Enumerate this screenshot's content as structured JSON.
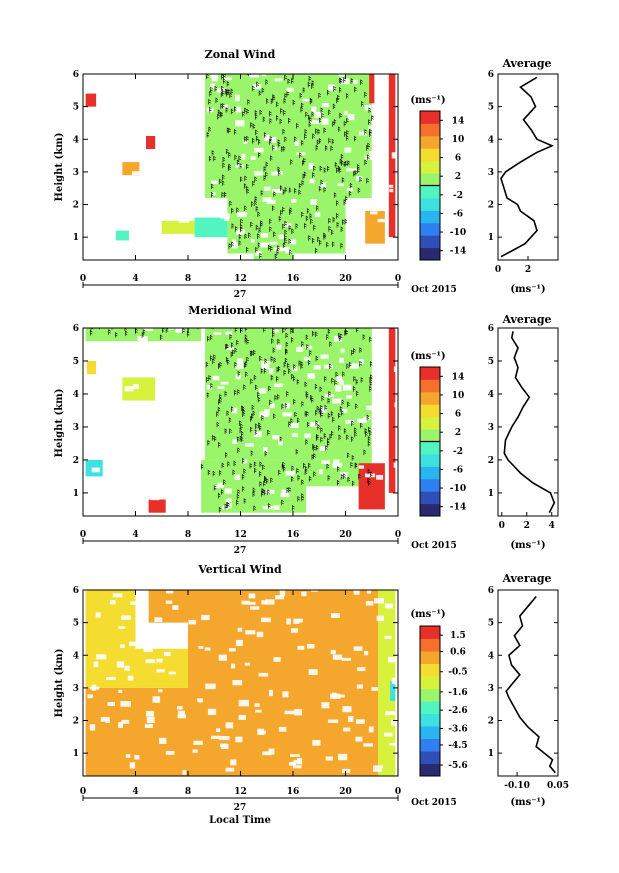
{
  "chart_data": [
    {
      "type": "heatmap",
      "title": "Zonal Wind",
      "ylabel": "Height (km)",
      "xlabel": "",
      "x_ticks": [
        "0",
        "4",
        "8",
        "12",
        "16",
        "20",
        "0"
      ],
      "xlim": [
        0,
        24
      ],
      "y_ticks": [
        "1",
        "2",
        "3",
        "4",
        "5",
        "6"
      ],
      "ylim": [
        0.3,
        6
      ],
      "date_label": "27",
      "month_label": "Oct 2015",
      "colorbar": {
        "unit": "(ms⁻¹)",
        "ticks": [
          "14",
          "10",
          "6",
          "2",
          "-2",
          "-6",
          "-10",
          "-14"
        ],
        "range": [
          -16,
          16
        ]
      },
      "regions": [
        {
          "x0": 9.3,
          "x1": 22,
          "y0": 2.2,
          "y1": 6,
          "v": 1
        },
        {
          "x0": 11,
          "x1": 20,
          "y0": 0.5,
          "y1": 2.2,
          "v": 1
        },
        {
          "x0": 13,
          "x1": 16,
          "y0": 0.3,
          "y1": 0.8,
          "v": 1
        },
        {
          "x0": 8.5,
          "x1": 11,
          "y0": 1.0,
          "y1": 1.6,
          "v": -1
        },
        {
          "x0": 6,
          "x1": 8.5,
          "y0": 1.1,
          "y1": 1.5,
          "v": 5
        },
        {
          "x0": 0.2,
          "x1": 1.0,
          "y0": 5.0,
          "y1": 5.4,
          "v": 14
        },
        {
          "x0": 3.0,
          "x1": 4.3,
          "y0": 2.9,
          "y1": 3.3,
          "v": 10
        },
        {
          "x0": 4.8,
          "x1": 5.5,
          "y0": 3.7,
          "y1": 4.1,
          "v": 14
        },
        {
          "x0": 21.5,
          "x1": 23,
          "y0": 0.8,
          "y1": 1.8,
          "v": 10
        },
        {
          "x0": 21.8,
          "x1": 22.2,
          "y0": 5.1,
          "y1": 6,
          "v": 14
        },
        {
          "x0": 23.3,
          "x1": 23.8,
          "y0": 1.0,
          "y1": 6,
          "v": 14
        },
        {
          "x0": 2.5,
          "x1": 3.5,
          "y0": 0.9,
          "y1": 1.2,
          "v": -1
        }
      ],
      "average": {
        "title": "Average",
        "xlabel": "(ms⁻¹)",
        "x_ticks": [
          "0",
          "2"
        ],
        "xlim": [
          0,
          4
        ],
        "ylim": [
          0.3,
          6
        ],
        "profile": [
          {
            "y": 0.4,
            "x": 0.2
          },
          {
            "y": 0.8,
            "x": 1.8
          },
          {
            "y": 1.2,
            "x": 2.6
          },
          {
            "y": 1.5,
            "x": 2.4
          },
          {
            "y": 1.8,
            "x": 1.5
          },
          {
            "y": 2.0,
            "x": 1.3
          },
          {
            "y": 2.2,
            "x": 0.6
          },
          {
            "y": 2.5,
            "x": 0.4
          },
          {
            "y": 2.8,
            "x": 0.2
          },
          {
            "y": 3.0,
            "x": 0.5
          },
          {
            "y": 3.3,
            "x": 1.5
          },
          {
            "y": 3.6,
            "x": 2.6
          },
          {
            "y": 3.8,
            "x": 3.6
          },
          {
            "y": 4.0,
            "x": 2.6
          },
          {
            "y": 4.3,
            "x": 2.2
          },
          {
            "y": 4.6,
            "x": 1.7
          },
          {
            "y": 5.0,
            "x": 2.5
          },
          {
            "y": 5.3,
            "x": 2.2
          },
          {
            "y": 5.6,
            "x": 1.5
          },
          {
            "y": 5.9,
            "x": 2.6
          }
        ]
      }
    },
    {
      "type": "heatmap",
      "title": "Meridional Wind",
      "ylabel": "Height (km)",
      "xlabel": "",
      "x_ticks": [
        "0",
        "4",
        "8",
        "12",
        "16",
        "20",
        "0"
      ],
      "xlim": [
        0,
        24
      ],
      "y_ticks": [
        "1",
        "2",
        "3",
        "4",
        "5",
        "6"
      ],
      "ylim": [
        0.3,
        6
      ],
      "date_label": "27",
      "month_label": "Oct 2015",
      "colorbar": {
        "unit": "(ms⁻¹)",
        "ticks": [
          "14",
          "10",
          "6",
          "2",
          "-2",
          "-6",
          "-10",
          "-14"
        ],
        "range": [
          -16,
          16
        ]
      },
      "regions": [
        {
          "x0": 9.3,
          "x1": 22,
          "y0": 2.0,
          "y1": 6,
          "v": 1
        },
        {
          "x0": 9.0,
          "x1": 17,
          "y0": 0.4,
          "y1": 2.0,
          "v": 1
        },
        {
          "x0": 17,
          "x1": 22,
          "y0": 1.2,
          "y1": 2.0,
          "v": 1
        },
        {
          "x0": 0.2,
          "x1": 9,
          "y0": 5.6,
          "y1": 6,
          "v": 1
        },
        {
          "x0": 5.0,
          "x1": 6.3,
          "y0": 0.4,
          "y1": 0.8,
          "v": 14
        },
        {
          "x0": 21,
          "x1": 23,
          "y0": 0.5,
          "y1": 1.9,
          "v": 14
        },
        {
          "x0": 23.3,
          "x1": 23.8,
          "y0": 1.0,
          "y1": 6,
          "v": 14
        },
        {
          "x0": 3.0,
          "x1": 5.5,
          "y0": 3.8,
          "y1": 4.5,
          "v": 5
        },
        {
          "x0": 0.2,
          "x1": 1.5,
          "y0": 1.5,
          "y1": 2.0,
          "v": -5
        },
        {
          "x0": 0.3,
          "x1": 1.0,
          "y0": 4.6,
          "y1": 5.0,
          "v": 7
        }
      ],
      "average": {
        "title": "Average",
        "xlabel": "(ms⁻¹)",
        "x_ticks": [
          "0",
          "2",
          "4"
        ],
        "xlim": [
          -0.3,
          4.5
        ],
        "ylim": [
          0.3,
          6
        ],
        "profile": [
          {
            "y": 0.4,
            "x": 3.8
          },
          {
            "y": 0.7,
            "x": 4.2
          },
          {
            "y": 1.0,
            "x": 3.9
          },
          {
            "y": 1.3,
            "x": 2.5
          },
          {
            "y": 1.6,
            "x": 1.5
          },
          {
            "y": 1.8,
            "x": 1.0
          },
          {
            "y": 2.0,
            "x": 0.5
          },
          {
            "y": 2.2,
            "x": 0.2
          },
          {
            "y": 2.6,
            "x": 0.3
          },
          {
            "y": 3.0,
            "x": 0.8
          },
          {
            "y": 3.3,
            "x": 1.3
          },
          {
            "y": 3.6,
            "x": 1.7
          },
          {
            "y": 3.9,
            "x": 2.2
          },
          {
            "y": 4.2,
            "x": 1.6
          },
          {
            "y": 4.5,
            "x": 1.1
          },
          {
            "y": 4.8,
            "x": 1.3
          },
          {
            "y": 5.1,
            "x": 1.0
          },
          {
            "y": 5.4,
            "x": 1.3
          },
          {
            "y": 5.7,
            "x": 0.8
          },
          {
            "y": 5.9,
            "x": 0.9
          }
        ]
      }
    },
    {
      "type": "heatmap",
      "title": "Vertical Wind",
      "ylabel": "Height (km)",
      "xlabel": "Local Time",
      "x_ticks": [
        "0",
        "4",
        "8",
        "12",
        "16",
        "20",
        "0"
      ],
      "xlim": [
        0,
        24
      ],
      "y_ticks": [
        "1",
        "2",
        "3",
        "4",
        "5",
        "6"
      ],
      "ylim": [
        0.3,
        6
      ],
      "date_label": "27",
      "month_label": "Oct 2015",
      "colorbar": {
        "unit": "(ms⁻¹)",
        "ticks": [
          "1.5",
          "0.6",
          "-0.5",
          "-1.6",
          "-2.6",
          "-3.6",
          "-4.5",
          "-5.6"
        ],
        "range": [
          -6.2,
          2.0
        ]
      },
      "regions": [
        {
          "x0": 8,
          "x1": 22.5,
          "y0": 0.3,
          "y1": 6,
          "v": 0.1
        },
        {
          "x0": 0.2,
          "x1": 8,
          "y0": 0.3,
          "y1": 3.0,
          "v": 0.1
        },
        {
          "x0": 0.2,
          "x1": 4,
          "y0": 3.0,
          "y1": 6,
          "v": -0.5
        },
        {
          "x0": 4,
          "x1": 8,
          "y0": 3.0,
          "y1": 4.2,
          "v": -0.2
        },
        {
          "x0": 5,
          "x1": 8,
          "y0": 5.0,
          "y1": 6,
          "v": 0.0
        },
        {
          "x0": 22.5,
          "x1": 23.8,
          "y0": 0.3,
          "y1": 6,
          "v": -0.8
        },
        {
          "x0": 23.4,
          "x1": 23.8,
          "y0": 2.6,
          "y1": 3.2,
          "v": -3.2
        }
      ],
      "average": {
        "title": "Average",
        "xlabel": "(ms⁻¹)",
        "x_ticks": [
          "-0.10",
          "0.05"
        ],
        "xlim": [
          -0.17,
          0.05
        ],
        "ylim": [
          0.3,
          6
        ],
        "profile": [
          {
            "y": 0.4,
            "x": 0.04
          },
          {
            "y": 0.6,
            "x": 0.02
          },
          {
            "y": 0.8,
            "x": 0.03
          },
          {
            "y": 1.0,
            "x": 0.0
          },
          {
            "y": 1.2,
            "x": -0.03
          },
          {
            "y": 1.5,
            "x": -0.02
          },
          {
            "y": 1.8,
            "x": -0.06
          },
          {
            "y": 2.1,
            "x": -0.09
          },
          {
            "y": 2.4,
            "x": -0.11
          },
          {
            "y": 2.7,
            "x": -0.13
          },
          {
            "y": 2.9,
            "x": -0.14
          },
          {
            "y": 3.1,
            "x": -0.12
          },
          {
            "y": 3.4,
            "x": -0.09
          },
          {
            "y": 3.7,
            "x": -0.12
          },
          {
            "y": 4.0,
            "x": -0.13
          },
          {
            "y": 4.3,
            "x": -0.09
          },
          {
            "y": 4.6,
            "x": -0.11
          },
          {
            "y": 4.9,
            "x": -0.08
          },
          {
            "y": 5.2,
            "x": -0.09
          },
          {
            "y": 5.5,
            "x": -0.06
          },
          {
            "y": 5.8,
            "x": -0.03
          }
        ]
      }
    }
  ]
}
